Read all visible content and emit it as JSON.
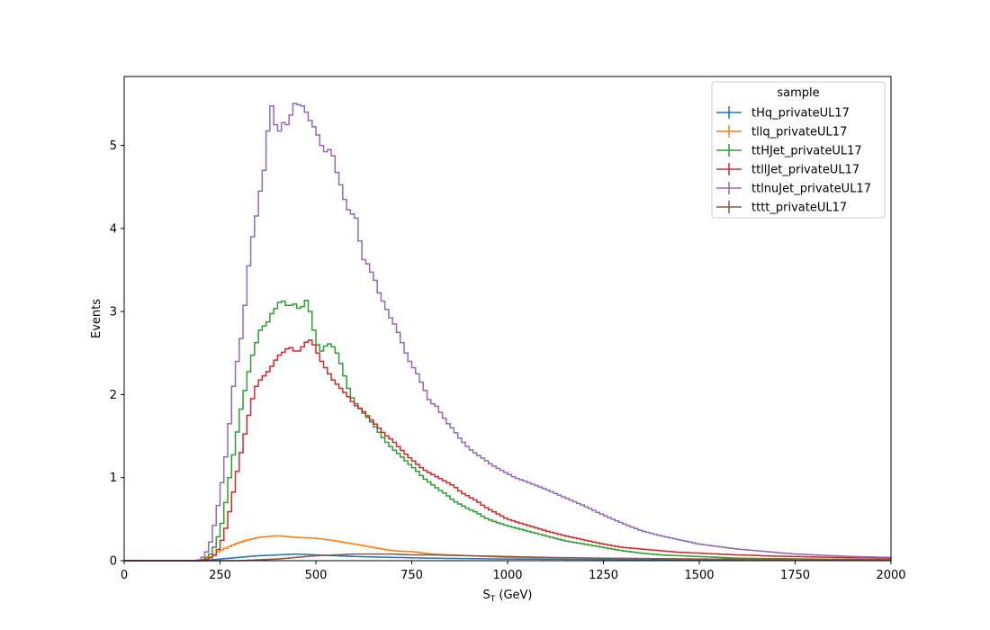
{
  "chart_data": {
    "type": "line",
    "step": true,
    "x_bin_width": 10,
    "xlim": [
      0,
      2000
    ],
    "ylim": [
      0,
      5.83
    ],
    "xticks": [
      0,
      250,
      500,
      750,
      1000,
      1250,
      1500,
      1750,
      2000
    ],
    "yticks": [
      0,
      1,
      2,
      3,
      4,
      5
    ],
    "xlabel_main": "S",
    "xlabel_sub": "T",
    "xlabel_unit": " (GeV)",
    "ylabel": "Events",
    "grid": false,
    "legend": {
      "title": "sample",
      "placement": "top-right"
    },
    "series": [
      {
        "name": "tHq_privateUL17",
        "color": "#1f77b4",
        "points": [
          [
            0,
            0
          ],
          [
            200,
            0
          ],
          [
            250,
            0.02
          ],
          [
            300,
            0.04
          ],
          [
            350,
            0.06
          ],
          [
            400,
            0.07
          ],
          [
            450,
            0.08
          ],
          [
            500,
            0.07
          ],
          [
            550,
            0.06
          ],
          [
            600,
            0.05
          ],
          [
            700,
            0.04
          ],
          [
            800,
            0.03
          ],
          [
            1000,
            0.02
          ],
          [
            1500,
            0.01
          ],
          [
            2000,
            0.005
          ]
        ]
      },
      {
        "name": "tllq_privateUL17",
        "color": "#ff7f0e",
        "points": [
          [
            0,
            0
          ],
          [
            200,
            0
          ],
          [
            220,
            0.03
          ],
          [
            250,
            0.12
          ],
          [
            300,
            0.22
          ],
          [
            350,
            0.28
          ],
          [
            400,
            0.3
          ],
          [
            450,
            0.28
          ],
          [
            500,
            0.27
          ],
          [
            550,
            0.24
          ],
          [
            600,
            0.2
          ],
          [
            650,
            0.16
          ],
          [
            700,
            0.12
          ],
          [
            750,
            0.11
          ],
          [
            800,
            0.08
          ],
          [
            900,
            0.06
          ],
          [
            1000,
            0.04
          ],
          [
            1250,
            0.03
          ],
          [
            1500,
            0.02
          ],
          [
            2000,
            0.01
          ]
        ]
      },
      {
        "name": "ttHJet_privateUL17",
        "color": "#2ca02c",
        "points": [
          [
            0,
            0
          ],
          [
            190,
            0
          ],
          [
            210,
            0.02
          ],
          [
            230,
            0.1
          ],
          [
            250,
            0.35
          ],
          [
            260,
            0.55
          ],
          [
            270,
            0.85
          ],
          [
            280,
            1.15
          ],
          [
            290,
            1.4
          ],
          [
            300,
            1.7
          ],
          [
            310,
            1.95
          ],
          [
            320,
            2.15
          ],
          [
            330,
            2.4
          ],
          [
            340,
            2.55
          ],
          [
            350,
            2.7
          ],
          [
            360,
            2.85
          ],
          [
            370,
            2.8
          ],
          [
            380,
            2.95
          ],
          [
            390,
            3.0
          ],
          [
            400,
            3.07
          ],
          [
            410,
            3.15
          ],
          [
            420,
            3.1
          ],
          [
            430,
            3.05
          ],
          [
            440,
            3.1
          ],
          [
            450,
            3.08
          ],
          [
            460,
            3.0
          ],
          [
            470,
            3.12
          ],
          [
            480,
            3.15
          ],
          [
            490,
            2.85
          ],
          [
            500,
            2.7
          ],
          [
            510,
            2.5
          ],
          [
            520,
            2.55
          ],
          [
            530,
            2.62
          ],
          [
            540,
            2.6
          ],
          [
            550,
            2.55
          ],
          [
            560,
            2.45
          ],
          [
            570,
            2.3
          ],
          [
            580,
            2.15
          ],
          [
            590,
            2.0
          ],
          [
            600,
            1.92
          ],
          [
            620,
            1.8
          ],
          [
            640,
            1.7
          ],
          [
            660,
            1.58
          ],
          [
            680,
            1.45
          ],
          [
            700,
            1.35
          ],
          [
            720,
            1.27
          ],
          [
            740,
            1.18
          ],
          [
            760,
            1.1
          ],
          [
            780,
            1.0
          ],
          [
            800,
            0.93
          ],
          [
            820,
            0.86
          ],
          [
            840,
            0.8
          ],
          [
            860,
            0.72
          ],
          [
            880,
            0.67
          ],
          [
            900,
            0.62
          ],
          [
            920,
            0.58
          ],
          [
            940,
            0.52
          ],
          [
            960,
            0.48
          ],
          [
            980,
            0.45
          ],
          [
            1000,
            0.42
          ],
          [
            1050,
            0.36
          ],
          [
            1100,
            0.3
          ],
          [
            1150,
            0.24
          ],
          [
            1200,
            0.2
          ],
          [
            1250,
            0.16
          ],
          [
            1300,
            0.12
          ],
          [
            1350,
            0.09
          ],
          [
            1400,
            0.07
          ],
          [
            1450,
            0.06
          ],
          [
            1500,
            0.05
          ],
          [
            1600,
            0.03
          ],
          [
            1700,
            0.025
          ],
          [
            1800,
            0.02
          ],
          [
            1900,
            0.015
          ],
          [
            2000,
            0.012
          ]
        ]
      },
      {
        "name": "ttllJet_privateUL17",
        "color": "#d62728",
        "points": [
          [
            0,
            0
          ],
          [
            200,
            0
          ],
          [
            220,
            0.02
          ],
          [
            240,
            0.08
          ],
          [
            260,
            0.3
          ],
          [
            270,
            0.48
          ],
          [
            280,
            0.7
          ],
          [
            290,
            0.95
          ],
          [
            300,
            1.2
          ],
          [
            310,
            1.4
          ],
          [
            320,
            1.65
          ],
          [
            330,
            1.85
          ],
          [
            340,
            2.05
          ],
          [
            350,
            2.15
          ],
          [
            360,
            2.2
          ],
          [
            370,
            2.25
          ],
          [
            380,
            2.3
          ],
          [
            390,
            2.38
          ],
          [
            400,
            2.45
          ],
          [
            410,
            2.5
          ],
          [
            420,
            2.52
          ],
          [
            430,
            2.58
          ],
          [
            440,
            2.55
          ],
          [
            450,
            2.5
          ],
          [
            460,
            2.55
          ],
          [
            470,
            2.6
          ],
          [
            480,
            2.66
          ],
          [
            490,
            2.65
          ],
          [
            500,
            2.55
          ],
          [
            510,
            2.45
          ],
          [
            520,
            2.35
          ],
          [
            530,
            2.3
          ],
          [
            540,
            2.2
          ],
          [
            550,
            2.15
          ],
          [
            560,
            2.1
          ],
          [
            570,
            2.05
          ],
          [
            580,
            2.0
          ],
          [
            590,
            1.95
          ],
          [
            600,
            1.88
          ],
          [
            620,
            1.82
          ],
          [
            640,
            1.72
          ],
          [
            660,
            1.62
          ],
          [
            680,
            1.52
          ],
          [
            700,
            1.45
          ],
          [
            720,
            1.35
          ],
          [
            740,
            1.26
          ],
          [
            760,
            1.18
          ],
          [
            780,
            1.1
          ],
          [
            800,
            1.05
          ],
          [
            820,
            1.0
          ],
          [
            840,
            0.95
          ],
          [
            860,
            0.9
          ],
          [
            880,
            0.82
          ],
          [
            900,
            0.77
          ],
          [
            920,
            0.72
          ],
          [
            940,
            0.65
          ],
          [
            960,
            0.6
          ],
          [
            980,
            0.55
          ],
          [
            1000,
            0.5
          ],
          [
            1050,
            0.43
          ],
          [
            1100,
            0.36
          ],
          [
            1150,
            0.3
          ],
          [
            1200,
            0.25
          ],
          [
            1250,
            0.2
          ],
          [
            1300,
            0.16
          ],
          [
            1350,
            0.14
          ],
          [
            1400,
            0.12
          ],
          [
            1450,
            0.1
          ],
          [
            1500,
            0.09
          ],
          [
            1600,
            0.07
          ],
          [
            1700,
            0.055
          ],
          [
            1800,
            0.045
          ],
          [
            1900,
            0.035
          ],
          [
            2000,
            0.03
          ]
        ]
      },
      {
        "name": "ttlnuJet_privateUL17",
        "color": "#9467bd",
        "points": [
          [
            0,
            0
          ],
          [
            190,
            0
          ],
          [
            200,
            0.02
          ],
          [
            210,
            0.06
          ],
          [
            220,
            0.15
          ],
          [
            230,
            0.3
          ],
          [
            240,
            0.55
          ],
          [
            250,
            0.78
          ],
          [
            260,
            1.1
          ],
          [
            270,
            1.4
          ],
          [
            280,
            1.9
          ],
          [
            290,
            2.3
          ],
          [
            300,
            2.5
          ],
          [
            310,
            2.85
          ],
          [
            320,
            3.3
          ],
          [
            330,
            3.8
          ],
          [
            340,
            4.0
          ],
          [
            350,
            4.3
          ],
          [
            360,
            4.6
          ],
          [
            370,
            4.8
          ],
          [
            380,
            5.55
          ],
          [
            390,
            5.4
          ],
          [
            400,
            5.1
          ],
          [
            410,
            5.25
          ],
          [
            420,
            5.3
          ],
          [
            430,
            5.2
          ],
          [
            440,
            5.53
          ],
          [
            450,
            5.48
          ],
          [
            460,
            5.5
          ],
          [
            470,
            5.45
          ],
          [
            480,
            5.35
          ],
          [
            490,
            5.25
          ],
          [
            500,
            5.2
          ],
          [
            510,
            5.05
          ],
          [
            520,
            4.95
          ],
          [
            530,
            4.9
          ],
          [
            540,
            5.0
          ],
          [
            550,
            4.75
          ],
          [
            560,
            4.6
          ],
          [
            570,
            4.45
          ],
          [
            580,
            4.25
          ],
          [
            590,
            4.2
          ],
          [
            600,
            4.15
          ],
          [
            610,
            4.1
          ],
          [
            620,
            3.6
          ],
          [
            630,
            3.65
          ],
          [
            640,
            3.5
          ],
          [
            650,
            3.45
          ],
          [
            660,
            3.3
          ],
          [
            670,
            3.15
          ],
          [
            680,
            3.1
          ],
          [
            690,
            2.95
          ],
          [
            700,
            2.9
          ],
          [
            710,
            2.8
          ],
          [
            720,
            2.7
          ],
          [
            730,
            2.55
          ],
          [
            740,
            2.45
          ],
          [
            750,
            2.35
          ],
          [
            760,
            2.3
          ],
          [
            770,
            2.2
          ],
          [
            780,
            2.1
          ],
          [
            790,
            2.0
          ],
          [
            800,
            1.88
          ],
          [
            810,
            1.9
          ],
          [
            820,
            1.82
          ],
          [
            830,
            1.75
          ],
          [
            840,
            1.68
          ],
          [
            850,
            1.62
          ],
          [
            860,
            1.58
          ],
          [
            870,
            1.5
          ],
          [
            880,
            1.45
          ],
          [
            890,
            1.4
          ],
          [
            900,
            1.35
          ],
          [
            920,
            1.28
          ],
          [
            940,
            1.22
          ],
          [
            960,
            1.15
          ],
          [
            980,
            1.1
          ],
          [
            1000,
            1.05
          ],
          [
            1020,
            1.0
          ],
          [
            1050,
            0.95
          ],
          [
            1100,
            0.86
          ],
          [
            1150,
            0.76
          ],
          [
            1200,
            0.66
          ],
          [
            1250,
            0.55
          ],
          [
            1300,
            0.45
          ],
          [
            1350,
            0.36
          ],
          [
            1400,
            0.3
          ],
          [
            1450,
            0.25
          ],
          [
            1500,
            0.2
          ],
          [
            1550,
            0.17
          ],
          [
            1600,
            0.14
          ],
          [
            1650,
            0.12
          ],
          [
            1700,
            0.1
          ],
          [
            1750,
            0.08
          ],
          [
            1800,
            0.07
          ],
          [
            1850,
            0.06
          ],
          [
            1900,
            0.05
          ],
          [
            2000,
            0.04
          ]
        ]
      },
      {
        "name": "tttt_privateUL17",
        "color": "#8c564b",
        "points": [
          [
            0,
            0
          ],
          [
            300,
            0
          ],
          [
            350,
            0.01
          ],
          [
            400,
            0.02
          ],
          [
            450,
            0.04
          ],
          [
            500,
            0.06
          ],
          [
            550,
            0.07
          ],
          [
            600,
            0.08
          ],
          [
            650,
            0.08
          ],
          [
            700,
            0.08
          ],
          [
            750,
            0.07
          ],
          [
            800,
            0.07
          ],
          [
            900,
            0.06
          ],
          [
            1000,
            0.05
          ],
          [
            1100,
            0.04
          ],
          [
            1250,
            0.03
          ],
          [
            1500,
            0.02
          ],
          [
            1750,
            0.015
          ],
          [
            2000,
            0.01
          ]
        ]
      }
    ]
  }
}
